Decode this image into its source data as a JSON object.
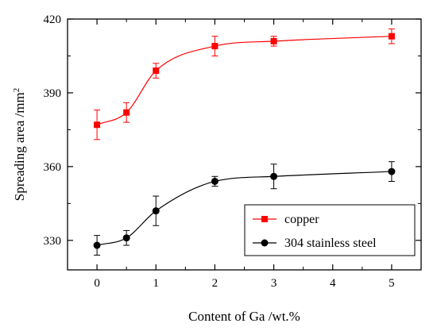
{
  "chart_data": {
    "type": "line",
    "title": "",
    "xlabel": "Content of Ga /wt.%",
    "ylabel": "Spreading area /mm",
    "ylabel_superscript": "2",
    "xlim": [
      -0.5,
      5.5
    ],
    "ylim": [
      318,
      420
    ],
    "xticks": [
      0,
      1,
      2,
      3,
      4,
      5
    ],
    "yticks": [
      330,
      360,
      390,
      420
    ],
    "grid": false,
    "legend_position": "bottom-right",
    "series": [
      {
        "name": "copper",
        "color": "#ff0000",
        "marker": "square",
        "x": [
          0,
          0.5,
          1,
          2,
          3,
          5
        ],
        "y": [
          377,
          382,
          399,
          409,
          411,
          413
        ],
        "err": [
          6,
          4,
          3,
          4,
          2,
          3
        ]
      },
      {
        "name": "304 stainless steel",
        "color": "#000000",
        "marker": "circle",
        "x": [
          0,
          0.5,
          1,
          2,
          3,
          5
        ],
        "y": [
          328,
          331,
          342,
          354,
          356,
          358
        ],
        "err": [
          4,
          3,
          6,
          2,
          5,
          4
        ]
      }
    ]
  }
}
